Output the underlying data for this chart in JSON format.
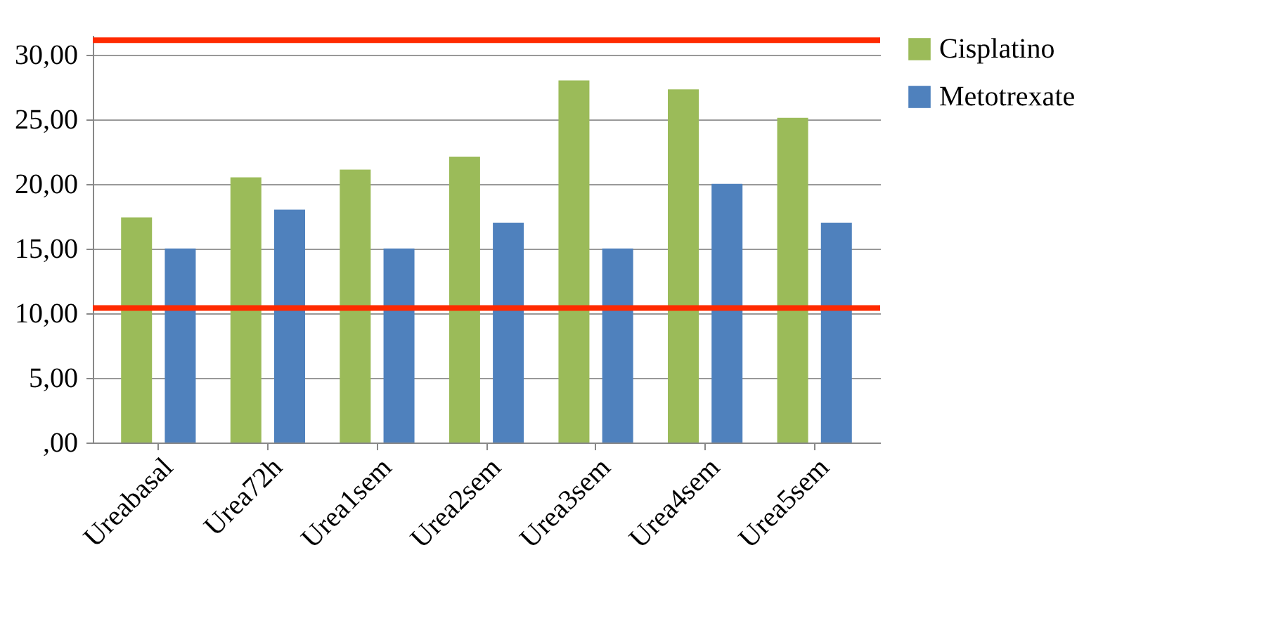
{
  "chart_data": {
    "type": "bar",
    "categories": [
      "Ureabasal",
      "Urea72h",
      "Urea1sem",
      "Urea2sem",
      "Urea3sem",
      "Urea4sem",
      "Urea5sem"
    ],
    "series": [
      {
        "name": "Cisplatino",
        "color": "#9bbb59",
        "values": [
          17.4,
          20.5,
          21.1,
          22.1,
          28.0,
          27.3,
          25.1
        ]
      },
      {
        "name": "Metotrexate",
        "color": "#4f81bd",
        "values": [
          15.0,
          18.0,
          15.0,
          17.0,
          15.0,
          20.0,
          17.0
        ]
      }
    ],
    "ylim": [
      0,
      31.5
    ],
    "yticks": [
      {
        "value": 0,
        "label": ",00"
      },
      {
        "value": 5,
        "label": "5,00"
      },
      {
        "value": 10,
        "label": "10,00"
      },
      {
        "value": 15,
        "label": "15,00"
      },
      {
        "value": 20,
        "label": "20,00"
      },
      {
        "value": 25,
        "label": "25,00"
      },
      {
        "value": 30,
        "label": "30,00"
      }
    ],
    "ref_lines": [
      {
        "axis": "y",
        "value": 31.1,
        "color": "#ff2a00"
      },
      {
        "axis": "y",
        "value": 10.4,
        "color": "#ff2a00"
      }
    ],
    "grid": "y",
    "legend": "right"
  }
}
